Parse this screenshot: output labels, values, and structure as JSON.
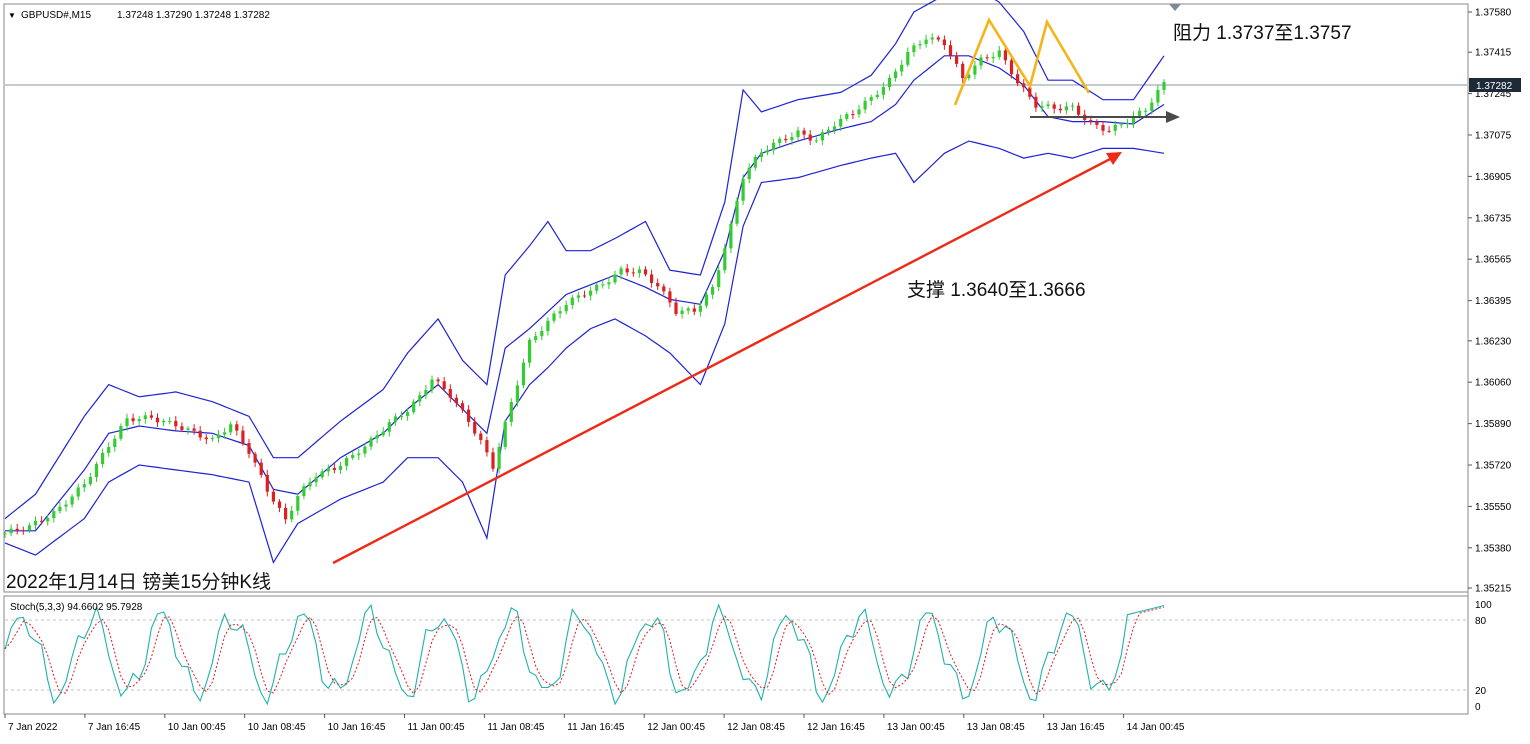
{
  "chart_data": [
    {
      "type": "candlestick",
      "title": "GBPUSD#,M15",
      "ohlc_header": "1.37248 1.37290 1.37248 1.37282",
      "caption": "2022年1月14日 镑美15分钟K线",
      "current_price": "1.37282",
      "yaxis_ticks": [
        "1.37580",
        "1.37415",
        "1.37245",
        "1.37075",
        "1.36905",
        "1.36735",
        "1.36565",
        "1.36395",
        "1.36230",
        "1.36060",
        "1.35890",
        "1.35720",
        "1.35550",
        "1.35380",
        "1.35215"
      ],
      "ylim": [
        1.35215,
        1.3758
      ],
      "xaxis_ticks": [
        "7 Jan 2022",
        "7 Jan 16:45",
        "10 Jan 00:45",
        "10 Jan 08:45",
        "10 Jan 16:45",
        "11 Jan 00:45",
        "11 Jan 08:45",
        "11 Jan 16:45",
        "12 Jan 00:45",
        "12 Jan 08:45",
        "12 Jan 16:45",
        "13 Jan 00:45",
        "13 Jan 08:45",
        "13 Jan 16:45",
        "14 Jan 00:45"
      ],
      "price_path": [
        [
          0,
          1.3544
        ],
        [
          4,
          1.3546
        ],
        [
          8,
          1.3552
        ],
        [
          13,
          1.3565
        ],
        [
          17,
          1.358
        ],
        [
          20,
          1.359
        ],
        [
          24,
          1.3591
        ],
        [
          28,
          1.3589
        ],
        [
          31,
          1.3586
        ],
        [
          34,
          1.3582
        ],
        [
          37,
          1.3588
        ],
        [
          40,
          1.3577
        ],
        [
          43,
          1.3562
        ],
        [
          46,
          1.355
        ],
        [
          48,
          1.356
        ],
        [
          51,
          1.3568
        ],
        [
          54,
          1.357
        ],
        [
          57,
          1.3575
        ],
        [
          60,
          1.3582
        ],
        [
          63,
          1.359
        ],
        [
          66,
          1.3595
        ],
        [
          68,
          1.36
        ],
        [
          70,
          1.3607
        ],
        [
          73,
          1.36
        ],
        [
          76,
          1.359
        ],
        [
          78,
          1.3582
        ],
        [
          80,
          1.3572
        ],
        [
          83,
          1.3598
        ],
        [
          86,
          1.3622
        ],
        [
          89,
          1.363
        ],
        [
          92,
          1.3638
        ],
        [
          95,
          1.3643
        ],
        [
          98,
          1.3647
        ],
        [
          101,
          1.3652
        ],
        [
          104,
          1.3651
        ],
        [
          107,
          1.3645
        ],
        [
          110,
          1.3635
        ],
        [
          113,
          1.3636
        ],
        [
          116,
          1.3645
        ],
        [
          119,
          1.367
        ],
        [
          121,
          1.369
        ],
        [
          124,
          1.37
        ],
        [
          127,
          1.3705
        ],
        [
          130,
          1.3709
        ],
        [
          133,
          1.3706
        ],
        [
          136,
          1.3712
        ],
        [
          139,
          1.3716
        ],
        [
          142,
          1.3722
        ],
        [
          145,
          1.373
        ],
        [
          148,
          1.3742
        ],
        [
          151,
          1.3748
        ],
        [
          154,
          1.3745
        ],
        [
          157,
          1.373
        ],
        [
          160,
          1.3738
        ],
        [
          163,
          1.3742
        ],
        [
          166,
          1.373
        ],
        [
          169,
          1.372
        ],
        [
          172,
          1.3718
        ],
        [
          175,
          1.3718
        ],
        [
          178,
          1.3712
        ],
        [
          181,
          1.371
        ],
        [
          184,
          1.3714
        ],
        [
          187,
          1.3718
        ],
        [
          190,
          1.3728
        ]
      ],
      "bollinger_upper": [
        [
          0,
          1.355
        ],
        [
          5,
          1.356
        ],
        [
          13,
          1.3592
        ],
        [
          17,
          1.3605
        ],
        [
          22,
          1.36
        ],
        [
          28,
          1.3602
        ],
        [
          34,
          1.3598
        ],
        [
          40,
          1.3592
        ],
        [
          44,
          1.3575
        ],
        [
          48,
          1.3575
        ],
        [
          55,
          1.359
        ],
        [
          62,
          1.3603
        ],
        [
          66,
          1.3618
        ],
        [
          71,
          1.3632
        ],
        [
          75,
          1.3615
        ],
        [
          79,
          1.3605
        ],
        [
          82,
          1.365
        ],
        [
          86,
          1.3662
        ],
        [
          89,
          1.3672
        ],
        [
          92,
          1.366
        ],
        [
          96,
          1.366
        ],
        [
          100,
          1.3665
        ],
        [
          105,
          1.3672
        ],
        [
          109,
          1.3652
        ],
        [
          114,
          1.365
        ],
        [
          118,
          1.368
        ],
        [
          121,
          1.3726
        ],
        [
          124,
          1.3717
        ],
        [
          130,
          1.3722
        ],
        [
          137,
          1.3725
        ],
        [
          142,
          1.3732
        ],
        [
          146,
          1.3745
        ],
        [
          149,
          1.3758
        ],
        [
          154,
          1.3765
        ],
        [
          158,
          1.377
        ],
        [
          163,
          1.3762
        ],
        [
          167,
          1.375
        ],
        [
          171,
          1.373
        ],
        [
          175,
          1.373
        ],
        [
          180,
          1.3722
        ],
        [
          185,
          1.3722
        ],
        [
          190,
          1.374
        ]
      ],
      "bollinger_middle": [
        [
          0,
          1.3545
        ],
        [
          5,
          1.3545
        ],
        [
          13,
          1.357
        ],
        [
          17,
          1.3585
        ],
        [
          22,
          1.3588
        ],
        [
          28,
          1.3586
        ],
        [
          34,
          1.3585
        ],
        [
          40,
          1.358
        ],
        [
          44,
          1.3562
        ],
        [
          48,
          1.356
        ],
        [
          55,
          1.3575
        ],
        [
          62,
          1.3585
        ],
        [
          66,
          1.3595
        ],
        [
          71,
          1.3605
        ],
        [
          75,
          1.3595
        ],
        [
          79,
          1.3585
        ],
        [
          82,
          1.362
        ],
        [
          86,
          1.3628
        ],
        [
          89,
          1.3635
        ],
        [
          92,
          1.3642
        ],
        [
          96,
          1.3646
        ],
        [
          100,
          1.365
        ],
        [
          105,
          1.3645
        ],
        [
          109,
          1.364
        ],
        [
          114,
          1.3638
        ],
        [
          118,
          1.366
        ],
        [
          121,
          1.369
        ],
        [
          124,
          1.37
        ],
        [
          130,
          1.3705
        ],
        [
          137,
          1.371
        ],
        [
          142,
          1.3713
        ],
        [
          146,
          1.372
        ],
        [
          149,
          1.373
        ],
        [
          154,
          1.374
        ],
        [
          158,
          1.374
        ],
        [
          163,
          1.3735
        ],
        [
          167,
          1.3728
        ],
        [
          171,
          1.3715
        ],
        [
          175,
          1.3713
        ],
        [
          180,
          1.3713
        ],
        [
          185,
          1.3712
        ],
        [
          190,
          1.372
        ]
      ],
      "bollinger_lower": [
        [
          0,
          1.354
        ],
        [
          5,
          1.3535
        ],
        [
          13,
          1.355
        ],
        [
          17,
          1.3565
        ],
        [
          22,
          1.3572
        ],
        [
          28,
          1.357
        ],
        [
          34,
          1.3568
        ],
        [
          40,
          1.3565
        ],
        [
          44,
          1.3532
        ],
        [
          48,
          1.3548
        ],
        [
          55,
          1.3558
        ],
        [
          62,
          1.3565
        ],
        [
          66,
          1.3575
        ],
        [
          71,
          1.3575
        ],
        [
          75,
          1.3565
        ],
        [
          79,
          1.3542
        ],
        [
          82,
          1.359
        ],
        [
          86,
          1.3605
        ],
        [
          89,
          1.3612
        ],
        [
          92,
          1.362
        ],
        [
          96,
          1.3628
        ],
        [
          100,
          1.3632
        ],
        [
          105,
          1.3625
        ],
        [
          109,
          1.3618
        ],
        [
          114,
          1.3605
        ],
        [
          118,
          1.363
        ],
        [
          121,
          1.367
        ],
        [
          124,
          1.3688
        ],
        [
          130,
          1.369
        ],
        [
          137,
          1.3695
        ],
        [
          142,
          1.3698
        ],
        [
          146,
          1.37
        ],
        [
          149,
          1.3688
        ],
        [
          154,
          1.37
        ],
        [
          158,
          1.3705
        ],
        [
          163,
          1.3702
        ],
        [
          167,
          1.3698
        ],
        [
          171,
          1.37
        ],
        [
          175,
          1.3698
        ],
        [
          180,
          1.3702
        ],
        [
          185,
          1.3702
        ],
        [
          190,
          1.37
        ]
      ],
      "stochastic": {
        "label": "Stoch(5,3,3) 94.6602 95.7928",
        "levels": [
          "100",
          "80",
          "20",
          "0"
        ]
      },
      "annotations": {
        "resistance": "阻力 1.3737至1.3757",
        "support": "支撑 1.3640至1.3666"
      }
    }
  ]
}
